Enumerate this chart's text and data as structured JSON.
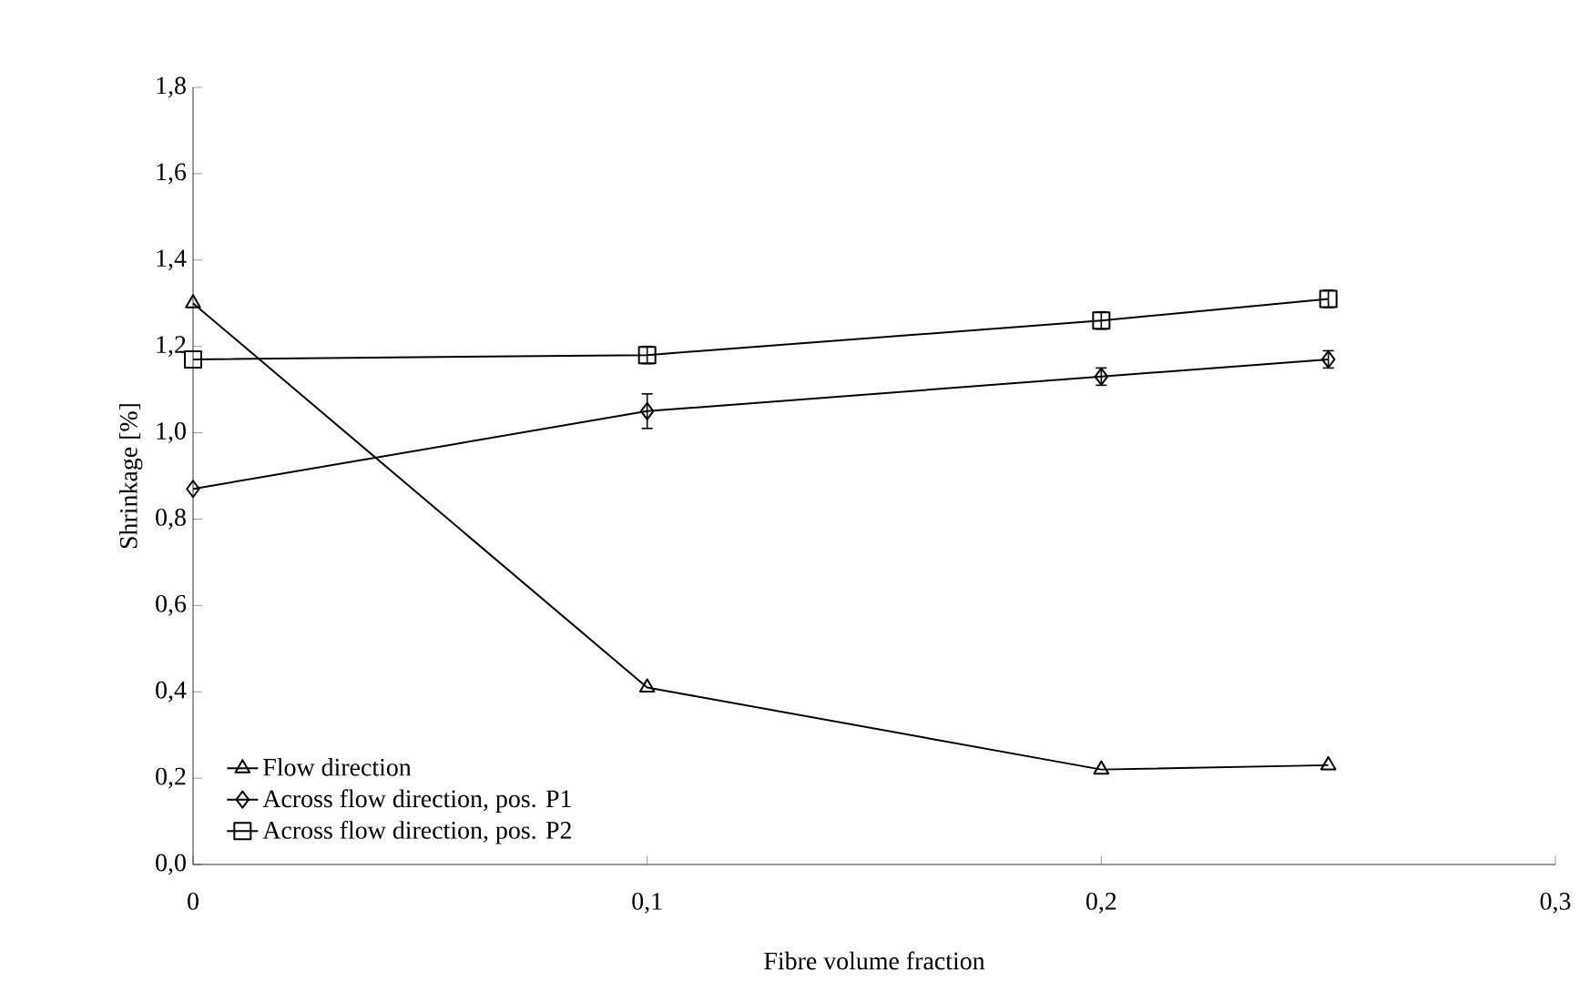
{
  "chart_data": {
    "type": "line",
    "xlabel": "Fibre volume fraction",
    "ylabel": "Shrinkage [%]",
    "x": [
      0,
      0.1,
      0.2,
      0.25
    ],
    "series": [
      {
        "name": "Flow direction",
        "color": "#000000",
        "marker": "triangle",
        "values": [
          1.3,
          0.41,
          0.22,
          0.23
        ]
      },
      {
        "name": "Across flow direction, pos. P1",
        "color": "#000000",
        "marker": "diamond",
        "values": [
          0.87,
          1.05,
          1.13,
          1.17
        ],
        "errors": [
          null,
          0.04,
          0.02,
          0.02
        ]
      },
      {
        "name": "Across flow direction, pos. P2",
        "color": "#000000",
        "marker": "square",
        "values": [
          1.17,
          1.18,
          1.26,
          1.31
        ],
        "errors": [
          null,
          0.02,
          0.02,
          0.02
        ]
      }
    ],
    "xlim": [
      0,
      0.3
    ],
    "ylim": [
      0,
      1.8
    ],
    "xticks": [
      {
        "value": 0,
        "label": "0"
      },
      {
        "value": 0.1,
        "label": "0,1"
      },
      {
        "value": 0.2,
        "label": "0,2"
      },
      {
        "value": 0.3,
        "label": "0,3"
      }
    ],
    "yticks": [
      {
        "value": 0,
        "label": "0,0"
      },
      {
        "value": 0.2,
        "label": "0,2"
      },
      {
        "value": 0.4,
        "label": "0,4"
      },
      {
        "value": 0.6,
        "label": "0,6"
      },
      {
        "value": 0.8,
        "label": "0,8"
      },
      {
        "value": 1.0,
        "label": "1,0"
      },
      {
        "value": 1.2,
        "label": "1,2"
      },
      {
        "value": 1.4,
        "label": "1,4"
      },
      {
        "value": 1.6,
        "label": "1,6"
      },
      {
        "value": 1.8,
        "label": "1,8"
      }
    ],
    "grid": false,
    "legend": "bottom left",
    "line_style": "solid"
  }
}
